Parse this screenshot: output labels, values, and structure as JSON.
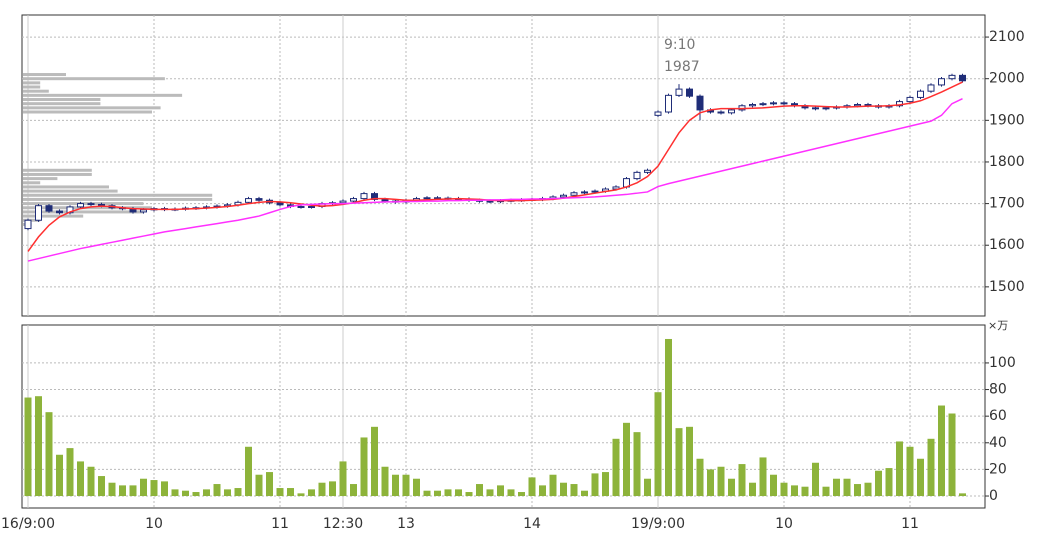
{
  "chart_data": [
    {
      "type": "candlestick",
      "open": [
        1640,
        1660,
        1695,
        1682,
        1678,
        1692,
        1700,
        1698,
        1695,
        1690,
        1688,
        1680,
        1685,
        1688,
        1686,
        1687,
        1689,
        1690,
        1692,
        1694,
        1697,
        1703,
        1712,
        1708,
        1702,
        1697,
        1693,
        1692,
        1693,
        1700,
        1702,
        1706,
        1712,
        1724,
        1710,
        1706,
        1704,
        1708,
        1712,
        1714,
        1713,
        1712,
        1711,
        1708,
        1706,
        1705,
        1707,
        1708,
        1709,
        1710,
        1712,
        1716,
        1720,
        1726,
        1728,
        1730,
        1735,
        1740,
        1760,
        1775,
        1912,
        1920,
        1960,
        1975,
        1958,
        1925,
        1920,
        1918,
        1925,
        1935,
        1938,
        1940,
        1942,
        1940,
        1935,
        1930,
        1928,
        1930,
        1932,
        1935,
        1938,
        1935,
        1932,
        1935,
        1945,
        1955,
        1970,
        1985,
        2000,
        2008
      ],
      "high": [
        1664,
        1699,
        1699,
        1686,
        1696,
        1704,
        1704,
        1702,
        1699,
        1694,
        1692,
        1689,
        1692,
        1692,
        1691,
        1693,
        1694,
        1696,
        1698,
        1701,
        1707,
        1716,
        1716,
        1712,
        1706,
        1701,
        1697,
        1697,
        1704,
        1706,
        1710,
        1716,
        1728,
        1728,
        1714,
        1710,
        1712,
        1716,
        1718,
        1718,
        1717,
        1716,
        1715,
        1712,
        1710,
        1711,
        1712,
        1713,
        1714,
        1716,
        1720,
        1724,
        1730,
        1732,
        1734,
        1739,
        1744,
        1764,
        1779,
        1784,
        1924,
        1964,
        1987,
        1979,
        1962,
        1929,
        1924,
        1929,
        1939,
        1942,
        1944,
        1946,
        1946,
        1944,
        1939,
        1934,
        1934,
        1936,
        1939,
        1942,
        1942,
        1939,
        1939,
        1949,
        1959,
        1974,
        1989,
        2004,
        2012,
        2012
      ],
      "low": [
        1636,
        1656,
        1678,
        1674,
        1674,
        1688,
        1694,
        1691,
        1686,
        1684,
        1676,
        1676,
        1681,
        1682,
        1682,
        1683,
        1685,
        1686,
        1688,
        1690,
        1693,
        1699,
        1704,
        1698,
        1693,
        1689,
        1688,
        1688,
        1689,
        1696,
        1698,
        1702,
        1708,
        1706,
        1702,
        1700,
        1700,
        1704,
        1708,
        1709,
        1708,
        1707,
        1704,
        1702,
        1701,
        1701,
        1703,
        1704,
        1705,
        1706,
        1708,
        1712,
        1716,
        1722,
        1724,
        1726,
        1731,
        1736,
        1756,
        1771,
        1908,
        1916,
        1956,
        1954,
        1900,
        1916,
        1914,
        1914,
        1921,
        1931,
        1934,
        1936,
        1936,
        1931,
        1926,
        1924,
        1924,
        1926,
        1928,
        1931,
        1931,
        1928,
        1928,
        1931,
        1941,
        1951,
        1966,
        1981,
        1996,
        1991
      ],
      "close": [
        1660,
        1695,
        1682,
        1678,
        1692,
        1700,
        1698,
        1695,
        1690,
        1688,
        1680,
        1685,
        1688,
        1686,
        1687,
        1689,
        1690,
        1692,
        1694,
        1697,
        1703,
        1712,
        1708,
        1702,
        1697,
        1693,
        1692,
        1693,
        1700,
        1702,
        1706,
        1712,
        1724,
        1710,
        1706,
        1704,
        1708,
        1712,
        1714,
        1713,
        1712,
        1711,
        1708,
        1706,
        1705,
        1707,
        1708,
        1709,
        1710,
        1712,
        1716,
        1720,
        1726,
        1728,
        1730,
        1735,
        1740,
        1760,
        1775,
        1780,
        1920,
        1960,
        1975,
        1958,
        1925,
        1920,
        1918,
        1925,
        1935,
        1938,
        1940,
        1942,
        1940,
        1935,
        1930,
        1928,
        1930,
        1932,
        1935,
        1938,
        1935,
        1932,
        1935,
        1945,
        1955,
        1970,
        1985,
        2000,
        2008,
        1995
      ],
      "up_color": "#ffffff",
      "down_color": "#1f2d78",
      "edge_color": "#1f2d78",
      "lines": [
        {
          "color": "#ff3030",
          "values": [
            1585,
            1620,
            1648,
            1668,
            1680,
            1688,
            1692,
            1694,
            1693,
            1690,
            1688,
            1687,
            1686,
            1686,
            1686,
            1687,
            1688,
            1689,
            1691,
            1693,
            1696,
            1700,
            1703,
            1705,
            1704,
            1702,
            1699,
            1696,
            1694,
            1695,
            1698,
            1702,
            1708,
            1712,
            1712,
            1710,
            1708,
            1708,
            1709,
            1710,
            1711,
            1712,
            1711,
            1710,
            1708,
            1707,
            1707,
            1707,
            1708,
            1709,
            1710,
            1713,
            1717,
            1721,
            1725,
            1729,
            1733,
            1740,
            1750,
            1765,
            1790,
            1830,
            1870,
            1900,
            1918,
            1925,
            1928,
            1928,
            1928,
            1929,
            1930,
            1932,
            1934,
            1935,
            1935,
            1934,
            1933,
            1932,
            1932,
            1933,
            1934,
            1934,
            1935,
            1937,
            1941,
            1947,
            1957,
            1968,
            1980,
            1992
          ]
        },
        {
          "color": "#ff30ff",
          "values": [
            1562,
            1568,
            1574,
            1580,
            1586,
            1592,
            1597,
            1602,
            1607,
            1612,
            1617,
            1622,
            1627,
            1632,
            1636,
            1640,
            1644,
            1648,
            1652,
            1656,
            1660,
            1665,
            1670,
            1678,
            1686,
            1693,
            1697,
            1698,
            1699,
            1700,
            1700,
            1701,
            1702,
            1703,
            1704,
            1704,
            1705,
            1705,
            1706,
            1706,
            1707,
            1707,
            1708,
            1708,
            1709,
            1709,
            1710,
            1710,
            1711,
            1711,
            1712,
            1713,
            1714,
            1715,
            1716,
            1718,
            1720,
            1722,
            1725,
            1728,
            1741,
            1748,
            1754,
            1760,
            1766,
            1772,
            1778,
            1784,
            1790,
            1796,
            1802,
            1808,
            1814,
            1820,
            1826,
            1832,
            1838,
            1844,
            1850,
            1856,
            1862,
            1868,
            1874,
            1880,
            1886,
            1892,
            1898,
            1912,
            1940,
            1952
          ]
        }
      ],
      "profile": {
        "color": "#bbbbbb",
        "prices": [
          2010,
          2000,
          1990,
          1980,
          1970,
          1960,
          1950,
          1940,
          1930,
          1920,
          1780,
          1770,
          1760,
          1750,
          1740,
          1730,
          1720,
          1710,
          1700,
          1690,
          1680,
          1670,
          1660,
          1650
        ],
        "values": [
          10,
          33,
          4,
          4,
          6,
          37,
          18,
          18,
          32,
          30,
          16,
          16,
          8,
          4,
          20,
          22,
          44,
          44,
          28,
          30,
          28,
          14,
          4,
          2
        ]
      },
      "annotation": {
        "label": "9:10",
        "value": 1987
      },
      "ylim": [
        1430,
        2153
      ],
      "yticks": [
        1500,
        1600,
        1700,
        1800,
        1900,
        2000,
        2100
      ],
      "grid": true
    },
    {
      "type": "bar",
      "unit_label": "×万",
      "categories": [
        "16/9:00",
        null,
        null,
        null,
        null,
        null,
        null,
        null,
        null,
        null,
        null,
        null,
        "10",
        null,
        null,
        null,
        null,
        null,
        null,
        null,
        null,
        null,
        null,
        null,
        "11",
        null,
        null,
        null,
        null,
        null,
        "12:30",
        null,
        null,
        null,
        null,
        null,
        "13",
        null,
        null,
        null,
        null,
        null,
        null,
        null,
        null,
        null,
        null,
        null,
        "14",
        null,
        null,
        null,
        null,
        null,
        null,
        null,
        null,
        null,
        null,
        null,
        "19/9:00",
        null,
        null,
        null,
        null,
        null,
        null,
        null,
        null,
        null,
        null,
        null,
        "10",
        null,
        null,
        null,
        null,
        null,
        null,
        null,
        null,
        null,
        null,
        null,
        "11",
        null,
        null,
        null,
        null,
        null
      ],
      "values": [
        74,
        75,
        63,
        31,
        36,
        26,
        22,
        15,
        10,
        8,
        8,
        13,
        12,
        11,
        5,
        4,
        3,
        5,
        9,
        5,
        6,
        37,
        16,
        18,
        6,
        6,
        2,
        5,
        10,
        11,
        26,
        9,
        44,
        52,
        22,
        16,
        16,
        13,
        4,
        4,
        5,
        5,
        3,
        9,
        5,
        8,
        5,
        3,
        14,
        8,
        16,
        10,
        9,
        4,
        17,
        18,
        43,
        55,
        48,
        13,
        78,
        118,
        51,
        52,
        28,
        20,
        22,
        13,
        24,
        10,
        29,
        16,
        10,
        8,
        7,
        25,
        7,
        13,
        13,
        9,
        10,
        19,
        21,
        41,
        37,
        28,
        43,
        68,
        62,
        2
      ],
      "color": "#8db33a",
      "ylim": [
        -9,
        128.5
      ],
      "yticks": [
        0,
        20,
        40,
        60,
        80,
        100
      ],
      "grid": true
    }
  ]
}
